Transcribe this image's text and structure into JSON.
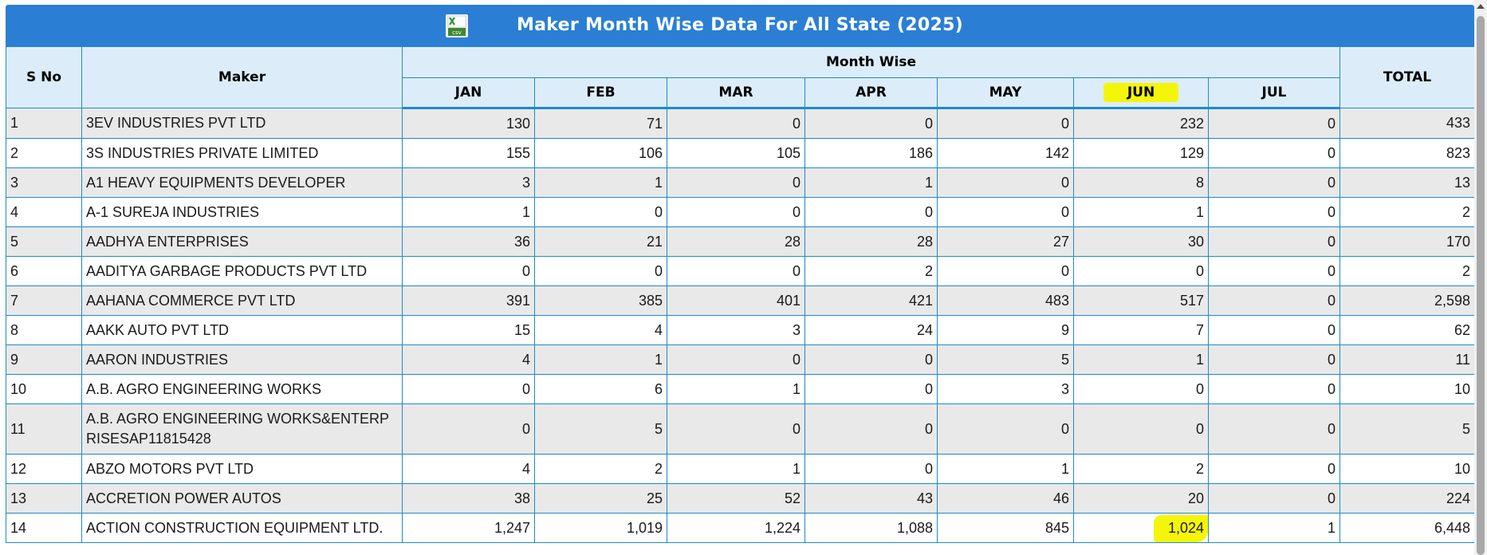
{
  "header": {
    "title": "Maker Month Wise Data For All State (2025)",
    "export_icon": "excel-csv-icon",
    "export_icon_caption": "csv"
  },
  "columns": {
    "sno": "S No",
    "maker": "Maker",
    "group": "Month Wise",
    "months": [
      "JAN",
      "FEB",
      "MAR",
      "APR",
      "MAY",
      "JUN",
      "JUL"
    ],
    "total": "TOTAL"
  },
  "highlights": {
    "color": "#f5f50a",
    "column": "JUN",
    "cell": "1,024"
  },
  "rows": [
    {
      "sno": "1",
      "maker": "3EV INDUSTRIES PVT LTD",
      "m": [
        "130",
        "71",
        "0",
        "0",
        "0",
        "232",
        "0"
      ],
      "total": "433"
    },
    {
      "sno": "2",
      "maker": "3S INDUSTRIES PRIVATE LIMITED",
      "m": [
        "155",
        "106",
        "105",
        "186",
        "142",
        "129",
        "0"
      ],
      "total": "823"
    },
    {
      "sno": "3",
      "maker": "A1 HEAVY EQUIPMENTS DEVELOPER",
      "m": [
        "3",
        "1",
        "0",
        "1",
        "0",
        "8",
        "0"
      ],
      "total": "13"
    },
    {
      "sno": "4",
      "maker": "A-1 SUREJA INDUSTRIES",
      "m": [
        "1",
        "0",
        "0",
        "0",
        "0",
        "1",
        "0"
      ],
      "total": "2"
    },
    {
      "sno": "5",
      "maker": "AADHYA ENTERPRISES",
      "m": [
        "36",
        "21",
        "28",
        "28",
        "27",
        "30",
        "0"
      ],
      "total": "170"
    },
    {
      "sno": "6",
      "maker": "AADITYA GARBAGE PRODUCTS PVT LTD",
      "m": [
        "0",
        "0",
        "0",
        "2",
        "0",
        "0",
        "0"
      ],
      "total": "2"
    },
    {
      "sno": "7",
      "maker": "AAHANA COMMERCE PVT LTD",
      "m": [
        "391",
        "385",
        "401",
        "421",
        "483",
        "517",
        "0"
      ],
      "total": "2,598"
    },
    {
      "sno": "8",
      "maker": "AAKK AUTO PVT LTD",
      "m": [
        "15",
        "4",
        "3",
        "24",
        "9",
        "7",
        "0"
      ],
      "total": "62"
    },
    {
      "sno": "9",
      "maker": "AARON INDUSTRIES",
      "m": [
        "4",
        "1",
        "0",
        "0",
        "5",
        "1",
        "0"
      ],
      "total": "11"
    },
    {
      "sno": "10",
      "maker": "A.B. AGRO ENGINEERING WORKS",
      "m": [
        "0",
        "6",
        "1",
        "0",
        "3",
        "0",
        "0"
      ],
      "total": "10"
    },
    {
      "sno": "11",
      "maker": "A.B. AGRO ENGINEERING WORKS&ENTERP RISESAP11815428",
      "m": [
        "0",
        "5",
        "0",
        "0",
        "0",
        "0",
        "0"
      ],
      "total": "5"
    },
    {
      "sno": "12",
      "maker": "ABZO MOTORS PVT LTD",
      "m": [
        "4",
        "2",
        "1",
        "0",
        "1",
        "2",
        "0"
      ],
      "total": "10"
    },
    {
      "sno": "13",
      "maker": "ACCRETION POWER AUTOS",
      "m": [
        "38",
        "25",
        "52",
        "43",
        "46",
        "20",
        "0"
      ],
      "total": "224"
    },
    {
      "sno": "14",
      "maker": "ACTION CONSTRUCTION EQUIPMENT LTD.",
      "m": [
        "1,247",
        "1,019",
        "1,224",
        "1,088",
        "845",
        "1,024",
        "1"
      ],
      "total": "6,448"
    }
  ]
}
